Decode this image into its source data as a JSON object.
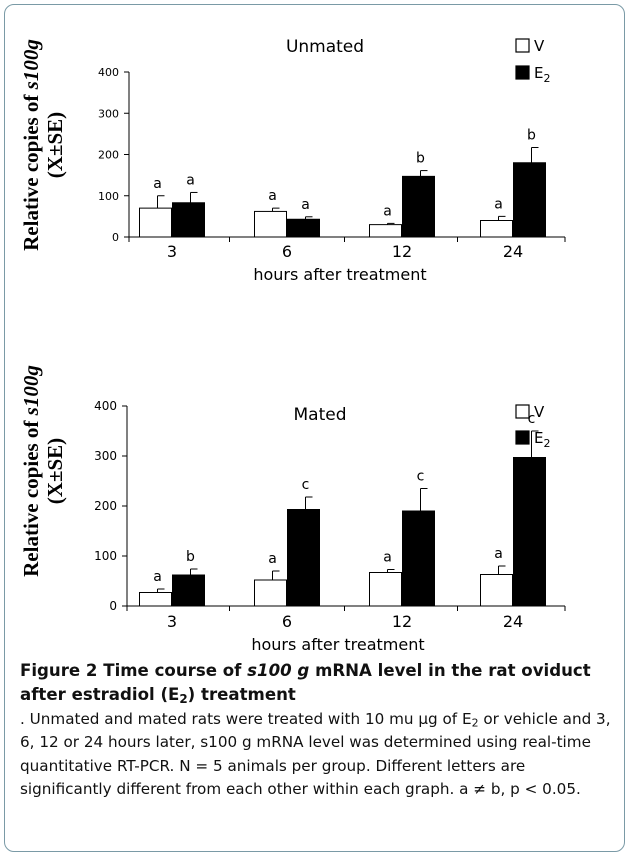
{
  "chart_data": [
    {
      "type": "bar",
      "title": "Unmated",
      "ylabel_prefix": "Relative copies of ",
      "ylabel_gene": "s100g",
      "ylabel_line2": "(X±SE)",
      "xlabel": "hours after treatment",
      "categories": [
        "3",
        "6",
        "12",
        "24"
      ],
      "ylim": [
        0,
        400
      ],
      "yticks": [
        "0",
        "100",
        "200",
        "300",
        "400"
      ],
      "series": [
        {
          "name": "V",
          "color": "#ffffff",
          "values": [
            70,
            62,
            30,
            40
          ],
          "errors": [
            30,
            8,
            3,
            10
          ],
          "letters": [
            "a",
            "a",
            "a",
            "a"
          ]
        },
        {
          "name": "E2",
          "name_base": "E",
          "name_sub": "2",
          "color": "#000000",
          "values": [
            83,
            43,
            147,
            180
          ],
          "errors": [
            25,
            6,
            14,
            37
          ],
          "letters": [
            "a",
            "a",
            "b",
            "b"
          ]
        }
      ]
    },
    {
      "type": "bar",
      "title": "Mated",
      "ylabel_prefix": "Relative copies of ",
      "ylabel_gene": "s100g",
      "ylabel_line2": "(X±SE)",
      "xlabel": "hours after treatment",
      "categories": [
        "3",
        "6",
        "12",
        "24"
      ],
      "ylim": [
        0,
        400
      ],
      "yticks": [
        "0",
        "100",
        "200",
        "300",
        "400"
      ],
      "series": [
        {
          "name": "V",
          "color": "#ffffff",
          "values": [
            27,
            52,
            67,
            63
          ],
          "errors": [
            7,
            18,
            6,
            17
          ],
          "letters": [
            "a",
            "a",
            "a",
            "a"
          ]
        },
        {
          "name": "E2",
          "name_base": "E",
          "name_sub": "2",
          "color": "#000000",
          "values": [
            62,
            193,
            190,
            297
          ],
          "errors": [
            12,
            25,
            45,
            53
          ],
          "letters": [
            "b",
            "c",
            "c",
            "c"
          ]
        }
      ]
    }
  ],
  "caption": {
    "label": "Figure 2",
    "title_a": " Time course of ",
    "title_gene": "s100 g",
    "title_b": " mRNA level in the rat oviduct after estradiol (E",
    "title_sub": "2",
    "title_c": ") treatment",
    "body_a": ". Unmated and mated rats were treated with 10 mu μg of E",
    "body_sub": "2",
    "body_b": " or vehicle and 3, 6, 12 or 24 hours later, s100 g mRNA level was determined using real-time quantitative RT-PCR. N = 5 animals per group. Different letters are significantly different from each other within each graph. a ≠ b, p < 0.05."
  }
}
